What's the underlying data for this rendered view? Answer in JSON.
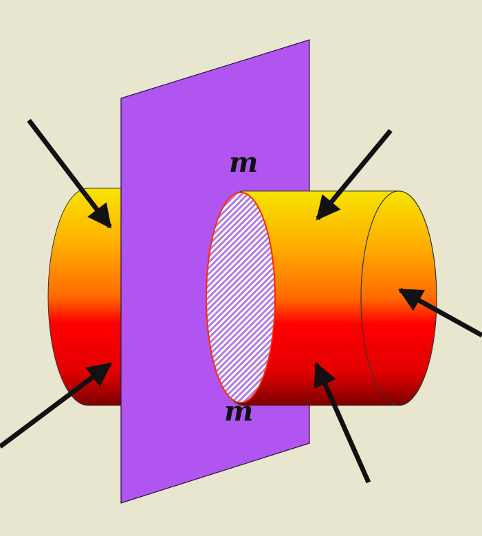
{
  "labels": {
    "section_top": "m",
    "section_bottom": "m"
  },
  "colors": {
    "background": "#e8e6cf",
    "plane": "#b055f0",
    "cylinder_top": "#f6e400",
    "cylinder_mid": "#ff8a00",
    "cylinder_low": "#ff0000",
    "cylinder_bottom": "#8a0000",
    "section_hatch": "#ffffff",
    "arrow": "#111111"
  },
  "elements": {
    "cutting_plane": "section-plane",
    "left_cylinder_part": "cylinder-left",
    "right_cylinder_part": "cylinder-right",
    "cross_section": "hatched-section",
    "force_arrows": 6
  }
}
